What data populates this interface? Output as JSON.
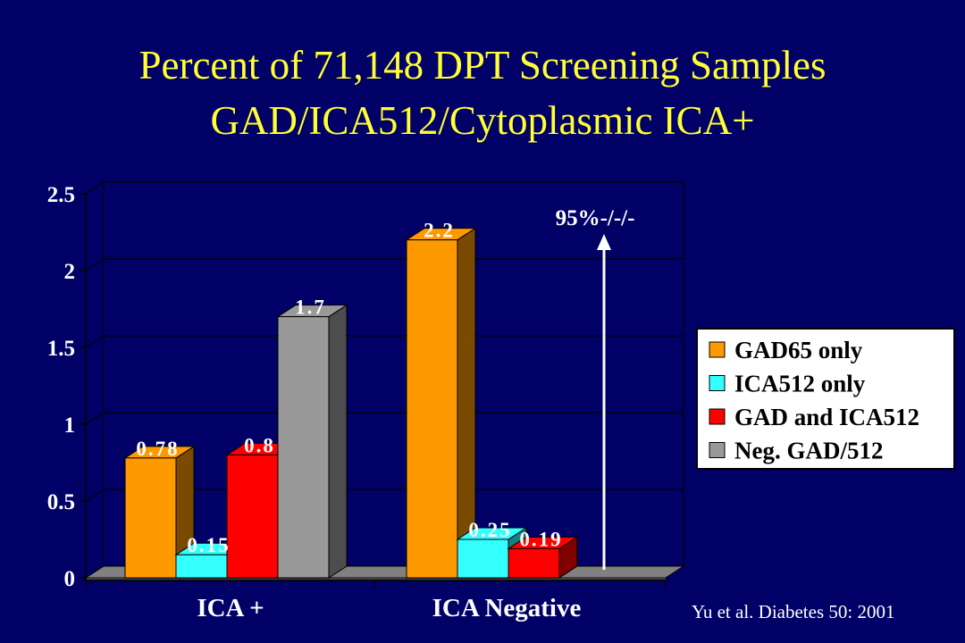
{
  "title_line1": "Percent of 71,148 DPT Screening Samples",
  "title_line2": "GAD/ICA512/Cytoplasmic  ICA+",
  "annotation": "95%-/-/-",
  "citation": "Yu et al. Diabetes 50: 2001",
  "chart_data": {
    "type": "bar",
    "categories": [
      "ICA +",
      "ICA Negative"
    ],
    "ylim": [
      0,
      2.5
    ],
    "yticks": [
      0,
      0.5,
      1,
      1.5,
      2,
      2.5
    ],
    "ytick_labels": [
      "0",
      "0.5",
      "1",
      "1.5",
      "2",
      "2.5"
    ],
    "grid": true,
    "legend_position": "right",
    "series": [
      {
        "name": "GAD65 only",
        "color": "#ff9900",
        "side_color": "#7a4a00",
        "values": [
          0.78,
          2.2
        ],
        "labels": [
          "0.78",
          "2.2"
        ]
      },
      {
        "name": "ICA512 only",
        "color": "#33ffff",
        "side_color": "#188080",
        "values": [
          0.15,
          0.25
        ],
        "labels": [
          "0.15",
          "0.25"
        ]
      },
      {
        "name": "GAD and ICA512",
        "color": "#ff0000",
        "side_color": "#800000",
        "values": [
          0.8,
          0.19
        ],
        "labels": [
          "0.8",
          "0.19"
        ]
      },
      {
        "name": "Neg. GAD/512",
        "color": "#999999",
        "side_color": "#4d4d4d",
        "values": [
          1.7,
          null
        ],
        "labels": [
          "1.7",
          ""
        ]
      }
    ]
  }
}
